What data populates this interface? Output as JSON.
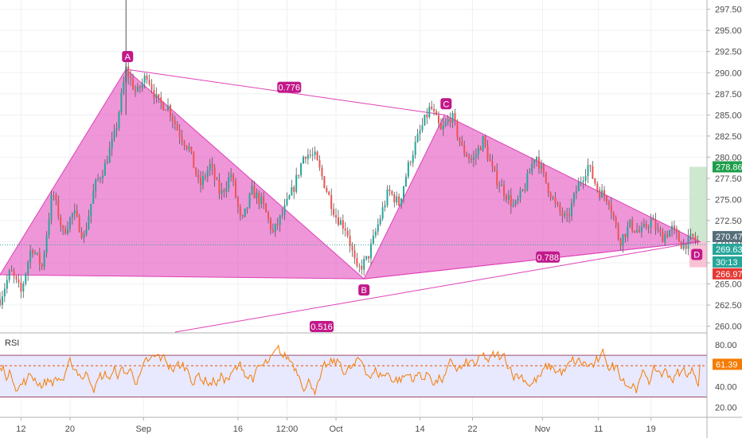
{
  "chart_data": {
    "type": "candlestick",
    "price_pane": {
      "y_ticks": [
        260.0,
        262.5,
        265.0,
        267.5,
        270.0,
        272.5,
        275.0,
        277.5,
        280.0,
        282.5,
        285.0,
        287.5,
        290.0,
        292.5,
        295.0,
        297.5
      ],
      "y_tick_labels": [
        "260.00",
        "262.50",
        "265.00",
        "267.50",
        "270.00",
        "272.50",
        "275.00",
        "277.50",
        "280.00",
        "282.50",
        "285.00",
        "287.50",
        "290.00",
        "292.50",
        "295.00",
        "297.50"
      ],
      "ylim": [
        259.3,
        298.6
      ],
      "price_path": [
        [
          0,
          263.2
        ],
        [
          3,
          266.5
        ],
        [
          6,
          264.0
        ],
        [
          9,
          269.5
        ],
        [
          12,
          267.0
        ],
        [
          15,
          276.0
        ],
        [
          18,
          271.0
        ],
        [
          21,
          273.5
        ],
        [
          24,
          270.5
        ],
        [
          27,
          276.5
        ],
        [
          30,
          279.0
        ],
        [
          33,
          283.0
        ],
        [
          36,
          290.4
        ],
        [
          39,
          287.5
        ],
        [
          42,
          289.8
        ],
        [
          45,
          286.5
        ],
        [
          48,
          286.0
        ],
        [
          51,
          283.0
        ],
        [
          54,
          281.0
        ],
        [
          57,
          276.5
        ],
        [
          60,
          279.0
        ],
        [
          63,
          275.5
        ],
        [
          66,
          278.0
        ],
        [
          69,
          272.0
        ],
        [
          72,
          276.0
        ],
        [
          75,
          274.5
        ],
        [
          78,
          271.0
        ],
        [
          81,
          273.5
        ],
        [
          84,
          276.5
        ],
        [
          87,
          280.5
        ],
        [
          90,
          280.0
        ],
        [
          93,
          276.5
        ],
        [
          96,
          273.0
        ],
        [
          99,
          271.5
        ],
        [
          102,
          266.5
        ],
        [
          105,
          268.0
        ],
        [
          108,
          272.0
        ],
        [
          111,
          276.0
        ],
        [
          114,
          274.5
        ],
        [
          117,
          279.5
        ],
        [
          120,
          283.0
        ],
        [
          123,
          286.0
        ],
        [
          126,
          283.0
        ],
        [
          129,
          285.0
        ],
        [
          132,
          281.0
        ],
        [
          135,
          279.5
        ],
        [
          138,
          282.0
        ],
        [
          141,
          278.0
        ],
        [
          144,
          276.0
        ],
        [
          147,
          274.0
        ],
        [
          150,
          276.5
        ],
        [
          153,
          280.5
        ],
        [
          156,
          277.0
        ],
        [
          159,
          274.0
        ],
        [
          162,
          272.5
        ],
        [
          165,
          276.5
        ],
        [
          168,
          279.0
        ],
        [
          171,
          276.0
        ],
        [
          174,
          275.0
        ],
        [
          177,
          270.0
        ],
        [
          180,
          272.0
        ],
        [
          183,
          271.0
        ],
        [
          186,
          272.5
        ],
        [
          189,
          270.5
        ],
        [
          192,
          271.5
        ],
        [
          195,
          269.5
        ],
        [
          198,
          270.5
        ],
        [
          200,
          269.6
        ]
      ],
      "pattern": {
        "points": [
          {
            "label": "A",
            "x": 36,
            "price": 290.4
          },
          {
            "label": "B",
            "x": 104,
            "price": 265.6
          },
          {
            "label": "C",
            "x": 127,
            "price": 285.0
          },
          {
            "label": "D",
            "x": 200,
            "price": 270.0
          }
        ],
        "ratios": [
          "0.776",
          "0.788",
          "0.516"
        ],
        "fill_color": "#e040b8",
        "line_color": "#e040b8"
      },
      "price_labels": [
        {
          "value": "278.86",
          "color": "#1e9e4a"
        },
        {
          "value": "270.47",
          "color": "#546e7a"
        },
        {
          "value": "269.63",
          "color": "#26a69a"
        },
        {
          "value": "30:13",
          "color": "#26a69a"
        },
        {
          "value": "266.97",
          "color": "#e53935"
        }
      ],
      "target_zone": {
        "from": 270.0,
        "to": 278.86,
        "color": "#c8e6c9"
      },
      "stop_zone": {
        "from": 266.97,
        "to": 270.0,
        "color": "#f8bbd0"
      },
      "current_price": 269.63
    },
    "rsi_pane": {
      "label": "RSI",
      "y_tick_labels": [
        "20.00",
        "40.00",
        "60.00",
        "80.00"
      ],
      "y_ticks": [
        20,
        40,
        60,
        80
      ],
      "ylim": [
        12,
        90
      ],
      "upper_band": 70,
      "lower_band": 30,
      "mid_line": 60,
      "current_value": "61.39",
      "line_color": "#f57c00",
      "band_fill": "#e8e8ff"
    },
    "x_axis": {
      "ticks": [
        {
          "x": 6,
          "label": "12"
        },
        {
          "x": 20,
          "label": "20"
        },
        {
          "x": 41,
          "label": "Sep"
        },
        {
          "x": 68,
          "label": "16"
        },
        {
          "x": 82,
          "label": "12:00"
        },
        {
          "x": 96,
          "label": "Oct"
        },
        {
          "x": 120,
          "label": "14"
        },
        {
          "x": 135,
          "label": "22"
        },
        {
          "x": 155,
          "label": "Nov"
        },
        {
          "x": 171,
          "label": "11"
        },
        {
          "x": 186,
          "label": "19"
        }
      ],
      "xlim": [
        0,
        202
      ]
    }
  }
}
